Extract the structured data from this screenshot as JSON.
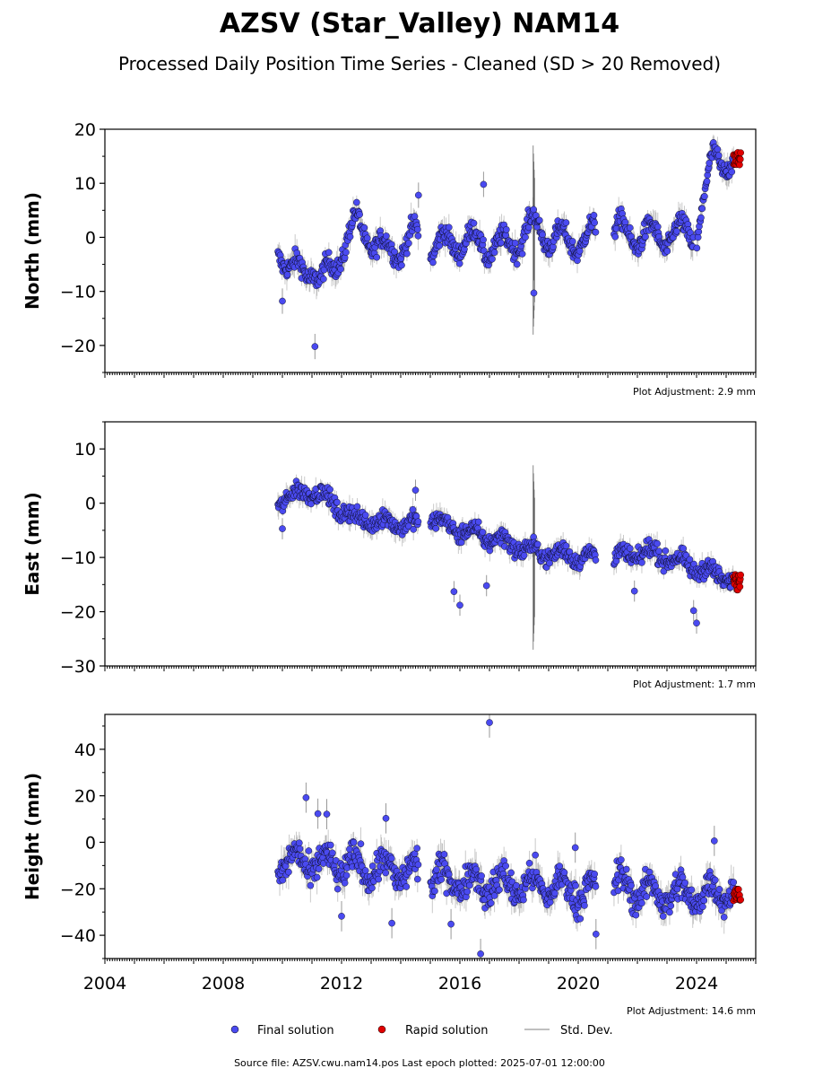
{
  "title": "AZSV (Star_Valley) NAM14",
  "subtitle": "Processed Daily Position Time Series - Cleaned (SD > 20 Removed)",
  "footer": {
    "source_label": "Source file: AZSV.cwu.nam14.pos  Last epoch plotted: 2025-07-01 12:00:00"
  },
  "legend": {
    "placement": "bottom-center",
    "final": "Final solution",
    "rapid": "Rapid solution",
    "stddev": "Std. Dev."
  },
  "colors": {
    "final": "#4a4af0",
    "rapid": "#e00000",
    "stddev": "#aaaaaa",
    "marker_edge": "#000000"
  },
  "chart_data": [
    {
      "type": "scatter",
      "ylabel": "North (mm)",
      "xlim": [
        2004,
        2026
      ],
      "ylim": [
        -25,
        20
      ],
      "yticks": [
        -20,
        -10,
        0,
        10,
        20
      ],
      "ytick_labels": [
        "−20",
        "−10",
        "0",
        "10",
        "20"
      ],
      "xtick_labels_shown": false,
      "adjustment": "Plot Adjustment: 2.9 mm",
      "final_series": {
        "t_start": 2009.85,
        "t_end": 2025.25,
        "trend": [
          [
            2009.9,
            -1.5
          ],
          [
            2010.3,
            -7
          ],
          [
            2011.0,
            -5
          ],
          [
            2011.3,
            -9
          ],
          [
            2012.5,
            2.5
          ],
          [
            2013.5,
            -3
          ],
          [
            2014.5,
            0
          ],
          [
            2015.1,
            -2
          ],
          [
            2016.0,
            -0.5
          ],
          [
            2017.5,
            -2
          ],
          [
            2018.5,
            2
          ],
          [
            2019.5,
            -1
          ],
          [
            2021.3,
            1
          ],
          [
            2022.5,
            0
          ],
          [
            2024.0,
            1
          ],
          [
            2024.6,
            15
          ],
          [
            2025.2,
            14
          ]
        ],
        "seasonal_amp": 2.5,
        "noise": 1.5,
        "std": 1.8
      },
      "gaps": [
        [
          2014.6,
          2015.0
        ],
        [
          2020.6,
          2021.2
        ],
        [
          2023.9,
          2024.0
        ]
      ],
      "rapid_series": {
        "t_start": 2025.25,
        "t_end": 2025.5,
        "mean": 14.5,
        "spread": 1.2
      },
      "outliers": [
        {
          "x": 2011.1,
          "y": -20.2
        },
        {
          "x": 2016.8,
          "y": 9.8
        },
        {
          "x": 2018.5,
          "y": -10.3
        },
        {
          "x": 2014.6,
          "y": 7.8
        },
        {
          "x": 2010.0,
          "y": -11.8
        }
      ],
      "spike": {
        "x": 2018.5,
        "low": -18,
        "high": 17
      }
    },
    {
      "type": "scatter",
      "ylabel": "East (mm)",
      "xlim": [
        2004,
        2026
      ],
      "ylim": [
        -30,
        15
      ],
      "yticks": [
        -30,
        -20,
        -10,
        0,
        10
      ],
      "ytick_labels": [
        "−30",
        "−20",
        "−10",
        "0",
        "10"
      ],
      "xtick_labels_shown": false,
      "adjustment": "Plot Adjustment: 1.7 mm",
      "final_series": {
        "t_start": 2009.85,
        "t_end": 2025.25,
        "trend": [
          [
            2009.9,
            0.5
          ],
          [
            2011.0,
            2.5
          ],
          [
            2012.5,
            -3
          ],
          [
            2014.6,
            -4
          ],
          [
            2015.1,
            -3
          ],
          [
            2016.0,
            -5
          ],
          [
            2017.5,
            -7
          ],
          [
            2018.5,
            -9
          ],
          [
            2020.5,
            -10
          ],
          [
            2021.3,
            -10
          ],
          [
            2022.5,
            -9
          ],
          [
            2024.0,
            -12
          ],
          [
            2025.2,
            -14
          ]
        ],
        "seasonal_amp": 1.0,
        "noise": 1.3,
        "std": 1.5
      },
      "gaps": [
        [
          2014.6,
          2015.0
        ],
        [
          2020.6,
          2021.2
        ]
      ],
      "rapid_series": {
        "t_start": 2025.25,
        "t_end": 2025.5,
        "mean": -14.5,
        "spread": 1.5
      },
      "outliers": [
        {
          "x": 2015.8,
          "y": -16.3
        },
        {
          "x": 2016.0,
          "y": -18.8
        },
        {
          "x": 2016.9,
          "y": -15.2
        },
        {
          "x": 2024.0,
          "y": -22.1
        },
        {
          "x": 2023.9,
          "y": -19.8
        },
        {
          "x": 2014.5,
          "y": 2.4
        },
        {
          "x": 2010.0,
          "y": -4.7
        },
        {
          "x": 2021.9,
          "y": -16.2
        }
      ],
      "spike": {
        "x": 2018.5,
        "low": -27,
        "high": 7
      }
    },
    {
      "type": "scatter",
      "ylabel": "Height (mm)",
      "xlim": [
        2004,
        2026
      ],
      "ylim": [
        -50,
        55
      ],
      "yticks": [
        -40,
        -20,
        0,
        20,
        40
      ],
      "ytick_labels": [
        "−40",
        "−20",
        "0",
        "20",
        "40"
      ],
      "xticks": [
        2004,
        2008,
        2012,
        2016,
        2020,
        2024
      ],
      "xtick_labels": [
        "2004",
        "2008",
        "2012",
        "2016",
        "2020",
        "2024"
      ],
      "xtick_labels_shown": true,
      "adjustment": "Plot Adjustment: 14.6 mm",
      "final_series": {
        "t_start": 2009.85,
        "t_end": 2025.25,
        "trend": [
          [
            2009.9,
            -8
          ],
          [
            2012.0,
            -10
          ],
          [
            2014.6,
            -13
          ],
          [
            2015.1,
            -15
          ],
          [
            2017.0,
            -18
          ],
          [
            2019.0,
            -19
          ],
          [
            2020.6,
            -22
          ],
          [
            2021.3,
            -18
          ],
          [
            2022.5,
            -22
          ],
          [
            2024.0,
            -23
          ],
          [
            2025.2,
            -20
          ]
        ],
        "seasonal_amp": 5,
        "noise": 5.5,
        "std": 5
      },
      "gaps": [
        [
          2014.6,
          2015.0
        ],
        [
          2020.6,
          2021.2
        ]
      ],
      "rapid_series": {
        "t_start": 2025.25,
        "t_end": 2025.5,
        "mean": -23,
        "spread": 3
      },
      "outliers": [
        {
          "x": 2017.0,
          "y": 51.5
        },
        {
          "x": 2016.7,
          "y": -48
        },
        {
          "x": 2010.8,
          "y": 19.2
        },
        {
          "x": 2011.2,
          "y": 12.3
        },
        {
          "x": 2011.5,
          "y": 12.1
        },
        {
          "x": 2013.5,
          "y": 10.3
        },
        {
          "x": 2013.7,
          "y": -34.8
        },
        {
          "x": 2015.7,
          "y": -35.2
        },
        {
          "x": 2020.6,
          "y": -39.5
        },
        {
          "x": 2024.6,
          "y": 0.6
        },
        {
          "x": 2012.0,
          "y": -31.8
        },
        {
          "x": 2019.9,
          "y": -2.3
        }
      ],
      "spike": null
    }
  ]
}
